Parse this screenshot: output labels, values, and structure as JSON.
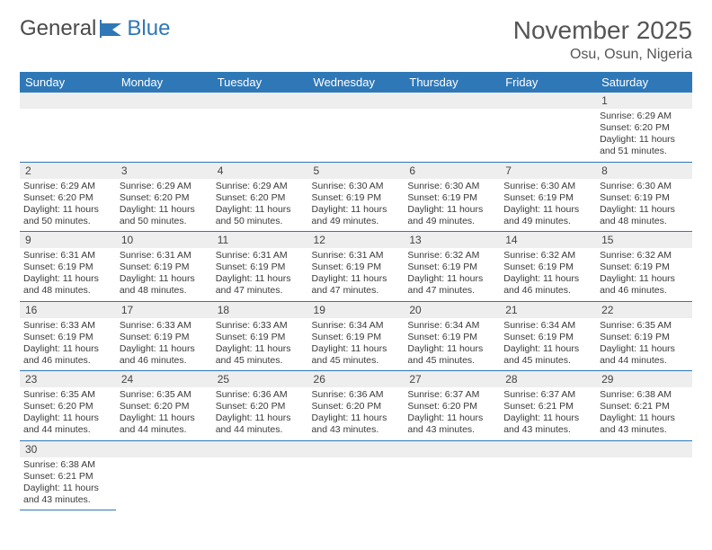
{
  "logo": {
    "part1": "General",
    "part2": "Blue"
  },
  "title": "November 2025",
  "location": "Osu, Osun, Nigeria",
  "day_headers": [
    "Sunday",
    "Monday",
    "Tuesday",
    "Wednesday",
    "Thursday",
    "Friday",
    "Saturday"
  ],
  "colors": {
    "header_bg": "#2f78b8",
    "header_text": "#ffffff",
    "daynum_bg": "#eeeeee",
    "text": "#3a3a3a",
    "cell_border": "#2f78b8",
    "background": "#ffffff"
  },
  "fonts": {
    "title_size": 28,
    "location_size": 16,
    "dayhead_size": 13,
    "cell_size": 10.5,
    "daynum_size": 12
  },
  "weeks": [
    [
      null,
      null,
      null,
      null,
      null,
      null,
      {
        "n": "1",
        "sr": "Sunrise: 6:29 AM",
        "ss": "Sunset: 6:20 PM",
        "d1": "Daylight: 11 hours",
        "d2": "and 51 minutes."
      }
    ],
    [
      {
        "n": "2",
        "sr": "Sunrise: 6:29 AM",
        "ss": "Sunset: 6:20 PM",
        "d1": "Daylight: 11 hours",
        "d2": "and 50 minutes."
      },
      {
        "n": "3",
        "sr": "Sunrise: 6:29 AM",
        "ss": "Sunset: 6:20 PM",
        "d1": "Daylight: 11 hours",
        "d2": "and 50 minutes."
      },
      {
        "n": "4",
        "sr": "Sunrise: 6:29 AM",
        "ss": "Sunset: 6:20 PM",
        "d1": "Daylight: 11 hours",
        "d2": "and 50 minutes."
      },
      {
        "n": "5",
        "sr": "Sunrise: 6:30 AM",
        "ss": "Sunset: 6:19 PM",
        "d1": "Daylight: 11 hours",
        "d2": "and 49 minutes."
      },
      {
        "n": "6",
        "sr": "Sunrise: 6:30 AM",
        "ss": "Sunset: 6:19 PM",
        "d1": "Daylight: 11 hours",
        "d2": "and 49 minutes."
      },
      {
        "n": "7",
        "sr": "Sunrise: 6:30 AM",
        "ss": "Sunset: 6:19 PM",
        "d1": "Daylight: 11 hours",
        "d2": "and 49 minutes."
      },
      {
        "n": "8",
        "sr": "Sunrise: 6:30 AM",
        "ss": "Sunset: 6:19 PM",
        "d1": "Daylight: 11 hours",
        "d2": "and 48 minutes."
      }
    ],
    [
      {
        "n": "9",
        "sr": "Sunrise: 6:31 AM",
        "ss": "Sunset: 6:19 PM",
        "d1": "Daylight: 11 hours",
        "d2": "and 48 minutes."
      },
      {
        "n": "10",
        "sr": "Sunrise: 6:31 AM",
        "ss": "Sunset: 6:19 PM",
        "d1": "Daylight: 11 hours",
        "d2": "and 48 minutes."
      },
      {
        "n": "11",
        "sr": "Sunrise: 6:31 AM",
        "ss": "Sunset: 6:19 PM",
        "d1": "Daylight: 11 hours",
        "d2": "and 47 minutes."
      },
      {
        "n": "12",
        "sr": "Sunrise: 6:31 AM",
        "ss": "Sunset: 6:19 PM",
        "d1": "Daylight: 11 hours",
        "d2": "and 47 minutes."
      },
      {
        "n": "13",
        "sr": "Sunrise: 6:32 AM",
        "ss": "Sunset: 6:19 PM",
        "d1": "Daylight: 11 hours",
        "d2": "and 47 minutes."
      },
      {
        "n": "14",
        "sr": "Sunrise: 6:32 AM",
        "ss": "Sunset: 6:19 PM",
        "d1": "Daylight: 11 hours",
        "d2": "and 46 minutes."
      },
      {
        "n": "15",
        "sr": "Sunrise: 6:32 AM",
        "ss": "Sunset: 6:19 PM",
        "d1": "Daylight: 11 hours",
        "d2": "and 46 minutes."
      }
    ],
    [
      {
        "n": "16",
        "sr": "Sunrise: 6:33 AM",
        "ss": "Sunset: 6:19 PM",
        "d1": "Daylight: 11 hours",
        "d2": "and 46 minutes."
      },
      {
        "n": "17",
        "sr": "Sunrise: 6:33 AM",
        "ss": "Sunset: 6:19 PM",
        "d1": "Daylight: 11 hours",
        "d2": "and 46 minutes."
      },
      {
        "n": "18",
        "sr": "Sunrise: 6:33 AM",
        "ss": "Sunset: 6:19 PM",
        "d1": "Daylight: 11 hours",
        "d2": "and 45 minutes."
      },
      {
        "n": "19",
        "sr": "Sunrise: 6:34 AM",
        "ss": "Sunset: 6:19 PM",
        "d1": "Daylight: 11 hours",
        "d2": "and 45 minutes."
      },
      {
        "n": "20",
        "sr": "Sunrise: 6:34 AM",
        "ss": "Sunset: 6:19 PM",
        "d1": "Daylight: 11 hours",
        "d2": "and 45 minutes."
      },
      {
        "n": "21",
        "sr": "Sunrise: 6:34 AM",
        "ss": "Sunset: 6:19 PM",
        "d1": "Daylight: 11 hours",
        "d2": "and 45 minutes."
      },
      {
        "n": "22",
        "sr": "Sunrise: 6:35 AM",
        "ss": "Sunset: 6:19 PM",
        "d1": "Daylight: 11 hours",
        "d2": "and 44 minutes."
      }
    ],
    [
      {
        "n": "23",
        "sr": "Sunrise: 6:35 AM",
        "ss": "Sunset: 6:20 PM",
        "d1": "Daylight: 11 hours",
        "d2": "and 44 minutes."
      },
      {
        "n": "24",
        "sr": "Sunrise: 6:35 AM",
        "ss": "Sunset: 6:20 PM",
        "d1": "Daylight: 11 hours",
        "d2": "and 44 minutes."
      },
      {
        "n": "25",
        "sr": "Sunrise: 6:36 AM",
        "ss": "Sunset: 6:20 PM",
        "d1": "Daylight: 11 hours",
        "d2": "and 44 minutes."
      },
      {
        "n": "26",
        "sr": "Sunrise: 6:36 AM",
        "ss": "Sunset: 6:20 PM",
        "d1": "Daylight: 11 hours",
        "d2": "and 43 minutes."
      },
      {
        "n": "27",
        "sr": "Sunrise: 6:37 AM",
        "ss": "Sunset: 6:20 PM",
        "d1": "Daylight: 11 hours",
        "d2": "and 43 minutes."
      },
      {
        "n": "28",
        "sr": "Sunrise: 6:37 AM",
        "ss": "Sunset: 6:21 PM",
        "d1": "Daylight: 11 hours",
        "d2": "and 43 minutes."
      },
      {
        "n": "29",
        "sr": "Sunrise: 6:38 AM",
        "ss": "Sunset: 6:21 PM",
        "d1": "Daylight: 11 hours",
        "d2": "and 43 minutes."
      }
    ],
    [
      {
        "n": "30",
        "sr": "Sunrise: 6:38 AM",
        "ss": "Sunset: 6:21 PM",
        "d1": "Daylight: 11 hours",
        "d2": "and 43 minutes."
      },
      null,
      null,
      null,
      null,
      null,
      null
    ]
  ]
}
